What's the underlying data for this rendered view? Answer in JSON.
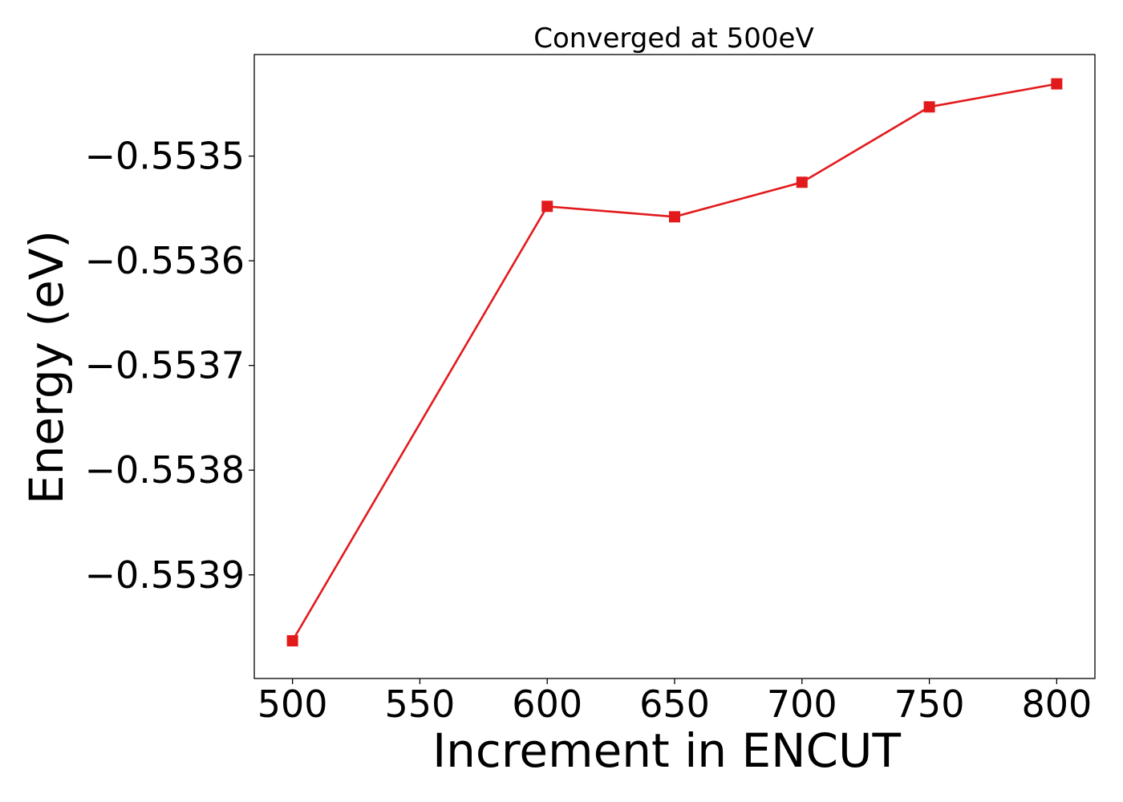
{
  "chart_data": {
    "type": "line",
    "title": "Converged at 500eV",
    "xlabel": "Increment in ENCUT",
    "ylabel": "Energy (eV)",
    "x": [
      500,
      600,
      650,
      700,
      750,
      800
    ],
    "series": [
      {
        "values": [
          -0.553963,
          -0.553548,
          -0.553558,
          -0.553525,
          -0.553453,
          -0.553431
        ],
        "color": "#e31a1c",
        "marker": "square"
      }
    ],
    "xticks": [
      500,
      550,
      600,
      650,
      700,
      750,
      800
    ],
    "xtick_labels": [
      "500",
      "550",
      "600",
      "650",
      "700",
      "750",
      "800"
    ],
    "yticks": [
      -0.5535,
      -0.5536,
      -0.5537,
      -0.5538,
      -0.5539
    ],
    "ytick_labels": [
      "−0.5535",
      "−0.5536",
      "−0.5537",
      "−0.5538",
      "−0.5539"
    ],
    "xlim": [
      485,
      815
    ],
    "ylim": [
      -0.553999,
      -0.553403
    ],
    "grid": false,
    "legend": "none"
  }
}
